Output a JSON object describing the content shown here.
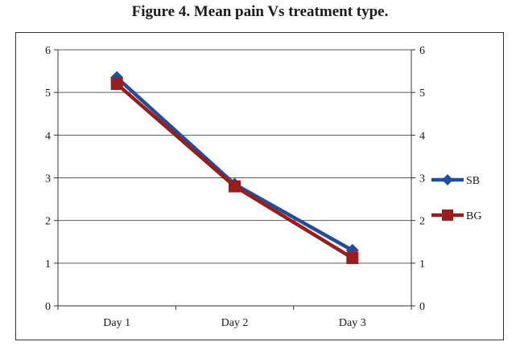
{
  "chart_data": {
    "type": "line",
    "title": "Figure 4. Mean pain Vs treatment type.",
    "xlabel": "",
    "ylabel": "",
    "categories": [
      "Day 1",
      "Day 2",
      "Day 3"
    ],
    "ylim": [
      0,
      6
    ],
    "yticks": [
      0,
      1,
      2,
      3,
      4,
      5,
      6
    ],
    "secondary_ylim": [
      0,
      6
    ],
    "grid": true,
    "legend_position": "right",
    "series": [
      {
        "name": "SB",
        "values": [
          5.35,
          2.85,
          1.3
        ],
        "color": "#1f4e9c",
        "marker": "diamond"
      },
      {
        "name": "BG",
        "values": [
          5.2,
          2.8,
          1.12
        ],
        "color": "#9b1c1c",
        "marker": "square"
      }
    ]
  }
}
